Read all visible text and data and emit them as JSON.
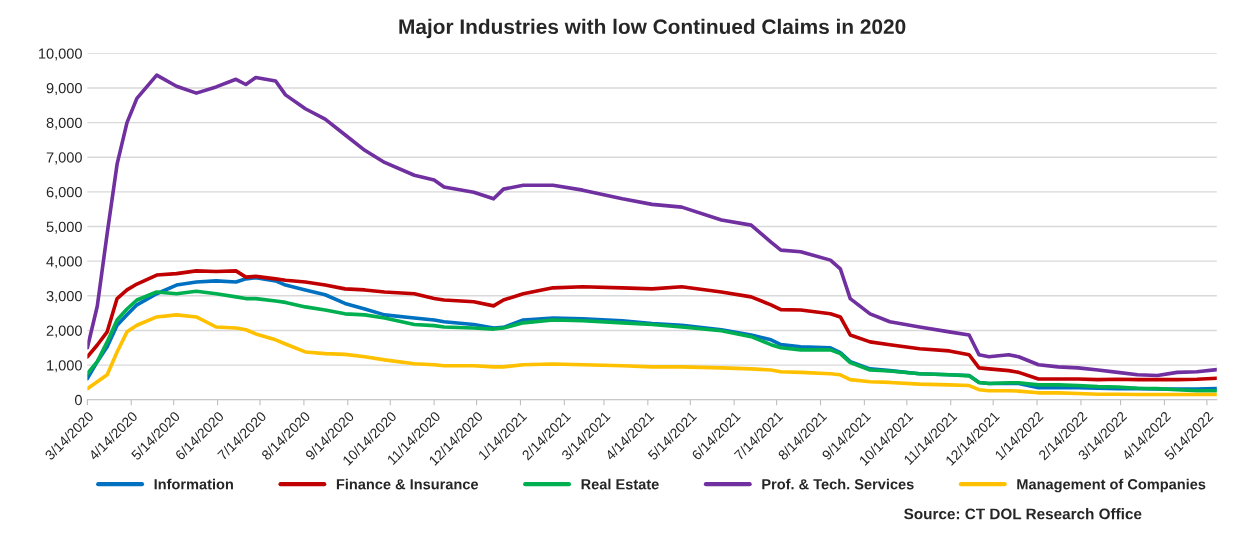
{
  "chart_data": {
    "type": "line",
    "title": "Major Industries with low Continued Claims in 2020",
    "x": [
      "2020-03-14",
      "2020-03-21",
      "2020-03-28",
      "2020-04-04",
      "2020-04-11",
      "2020-04-18",
      "2020-05-02",
      "2020-05-16",
      "2020-05-30",
      "2020-06-13",
      "2020-06-27",
      "2020-07-04",
      "2020-07-11",
      "2020-07-25",
      "2020-08-01",
      "2020-08-15",
      "2020-08-29",
      "2020-09-12",
      "2020-09-26",
      "2020-10-10",
      "2020-10-31",
      "2020-11-14",
      "2020-11-21",
      "2020-12-12",
      "2020-12-26",
      "2021-01-02",
      "2021-01-16",
      "2021-02-06",
      "2021-02-27",
      "2021-03-27",
      "2021-04-17",
      "2021-05-08",
      "2021-06-05",
      "2021-06-26",
      "2021-07-10",
      "2021-07-17",
      "2021-07-31",
      "2021-08-21",
      "2021-08-28",
      "2021-09-04",
      "2021-09-18",
      "2021-10-02",
      "2021-10-23",
      "2021-11-13",
      "2021-11-27",
      "2021-12-04",
      "2021-12-11",
      "2021-12-25",
      "2022-01-01",
      "2022-01-15",
      "2022-01-29",
      "2022-02-12",
      "2022-02-26",
      "2022-03-12",
      "2022-03-26",
      "2022-04-09",
      "2022-04-23",
      "2022-05-07",
      "2022-05-21"
    ],
    "series": [
      {
        "name": "Information",
        "color": "#0070c0",
        "values": [
          610,
          1100,
          1530,
          2150,
          2450,
          2740,
          3060,
          3310,
          3400,
          3430,
          3400,
          3490,
          3520,
          3430,
          3310,
          3170,
          3030,
          2780,
          2620,
          2450,
          2360,
          2300,
          2250,
          2170,
          2070,
          2090,
          2300,
          2360,
          2340,
          2280,
          2200,
          2150,
          2020,
          1870,
          1730,
          1590,
          1530,
          1500,
          1360,
          1100,
          890,
          840,
          750,
          720,
          700,
          500,
          470,
          470,
          470,
          350,
          350,
          350,
          330,
          320,
          320,
          310,
          310,
          310,
          320
        ]
      },
      {
        "name": "Finance & Insurance",
        "color": "#c00000",
        "values": [
          1240,
          1580,
          1960,
          2920,
          3170,
          3340,
          3600,
          3640,
          3720,
          3700,
          3720,
          3540,
          3560,
          3490,
          3450,
          3400,
          3310,
          3200,
          3170,
          3110,
          3060,
          2920,
          2880,
          2830,
          2710,
          2880,
          3060,
          3230,
          3260,
          3230,
          3200,
          3260,
          3110,
          2970,
          2740,
          2600,
          2590,
          2480,
          2390,
          1870,
          1670,
          1590,
          1470,
          1410,
          1300,
          920,
          890,
          840,
          790,
          600,
          600,
          600,
          580,
          590,
          580,
          580,
          580,
          590,
          620
        ]
      },
      {
        "name": "Real Estate",
        "color": "#00b050",
        "values": [
          750,
          1100,
          1670,
          2300,
          2620,
          2880,
          3110,
          3060,
          3130,
          3060,
          2970,
          2920,
          2920,
          2850,
          2810,
          2680,
          2590,
          2480,
          2450,
          2360,
          2170,
          2140,
          2100,
          2070,
          2040,
          2070,
          2220,
          2300,
          2280,
          2220,
          2170,
          2100,
          1990,
          1820,
          1590,
          1500,
          1440,
          1440,
          1330,
          1070,
          860,
          830,
          750,
          720,
          690,
          500,
          470,
          490,
          490,
          430,
          430,
          410,
          380,
          370,
          330,
          320,
          290,
          260,
          260
        ]
      },
      {
        "name": "Prof. & Tech. Services",
        "color": "#7030a0",
        "values": [
          1500,
          2700,
          4800,
          6800,
          8000,
          8700,
          9370,
          9050,
          8850,
          9030,
          9250,
          9100,
          9300,
          9200,
          8800,
          8400,
          8100,
          7650,
          7200,
          6850,
          6480,
          6340,
          6140,
          5990,
          5800,
          6080,
          6190,
          6190,
          6050,
          5800,
          5640,
          5560,
          5190,
          5040,
          4550,
          4320,
          4270,
          4030,
          3780,
          2920,
          2480,
          2250,
          2100,
          1960,
          1870,
          1300,
          1240,
          1300,
          1240,
          1010,
          950,
          920,
          860,
          790,
          720,
          700,
          790,
          810,
          870
        ]
      },
      {
        "name": "Management of Companies",
        "color": "#ffc000",
        "values": [
          320,
          520,
          720,
          1380,
          1960,
          2150,
          2390,
          2450,
          2390,
          2100,
          2070,
          2020,
          1900,
          1730,
          1610,
          1380,
          1330,
          1310,
          1240,
          1150,
          1040,
          1010,
          980,
          980,
          950,
          950,
          1010,
          1030,
          1010,
          980,
          950,
          950,
          920,
          890,
          860,
          810,
          790,
          750,
          720,
          580,
          520,
          500,
          450,
          430,
          410,
          290,
          260,
          260,
          250,
          200,
          200,
          180,
          160,
          160,
          150,
          150,
          150,
          150,
          150
        ]
      }
    ],
    "xlim": [
      "2020-03-14",
      "2022-05-21"
    ],
    "xticks": [
      {
        "value": "2020-03-14",
        "label": "3/14/2020"
      },
      {
        "value": "2020-04-14",
        "label": "4/14/2020"
      },
      {
        "value": "2020-05-14",
        "label": "5/14/2020"
      },
      {
        "value": "2020-06-14",
        "label": "6/14/2020"
      },
      {
        "value": "2020-07-14",
        "label": "7/14/2020"
      },
      {
        "value": "2020-08-14",
        "label": "8/14/2020"
      },
      {
        "value": "2020-09-14",
        "label": "9/14/2020"
      },
      {
        "value": "2020-10-14",
        "label": "10/14/2020"
      },
      {
        "value": "2020-11-14",
        "label": "11/14/2020"
      },
      {
        "value": "2020-12-14",
        "label": "12/14/2020"
      },
      {
        "value": "2021-01-14",
        "label": "1/14/2021"
      },
      {
        "value": "2021-02-14",
        "label": "2/14/2021"
      },
      {
        "value": "2021-03-14",
        "label": "3/14/2021"
      },
      {
        "value": "2021-04-14",
        "label": "4/14/2021"
      },
      {
        "value": "2021-05-14",
        "label": "5/14/2021"
      },
      {
        "value": "2021-06-14",
        "label": "6/14/2021"
      },
      {
        "value": "2021-07-14",
        "label": "7/14/2021"
      },
      {
        "value": "2021-08-14",
        "label": "8/14/2021"
      },
      {
        "value": "2021-09-14",
        "label": "9/14/2021"
      },
      {
        "value": "2021-10-14",
        "label": "10/14/2021"
      },
      {
        "value": "2021-11-14",
        "label": "11/14/2021"
      },
      {
        "value": "2021-12-14",
        "label": "12/14/2021"
      },
      {
        "value": "2022-01-14",
        "label": "1/14/2022"
      },
      {
        "value": "2022-02-14",
        "label": "2/14/2022"
      },
      {
        "value": "2022-03-14",
        "label": "3/14/2022"
      },
      {
        "value": "2022-04-14",
        "label": "4/14/2022"
      },
      {
        "value": "2022-05-14",
        "label": "5/14/2022"
      }
    ],
    "ylim": [
      0,
      10000
    ],
    "yticks": [
      0,
      {
        "value": 1000,
        "label": "1,000"
      },
      {
        "value": 2000,
        "label": "2,000"
      },
      {
        "value": 3000,
        "label": "3,000"
      },
      {
        "value": 4000,
        "label": "4,000"
      },
      {
        "value": 5000,
        "label": "5,000"
      },
      {
        "value": 6000,
        "label": "6,000"
      },
      {
        "value": 7000,
        "label": "7,000"
      },
      {
        "value": 8000,
        "label": "8,000"
      },
      {
        "value": 9000,
        "label": "9,000"
      },
      {
        "value": 10000,
        "label": "10,000"
      }
    ],
    "grid": "y",
    "legend": "bottom",
    "marker": "none",
    "line_style": "solid",
    "annotations": [
      "Source: CT DOL Research Office"
    ]
  }
}
